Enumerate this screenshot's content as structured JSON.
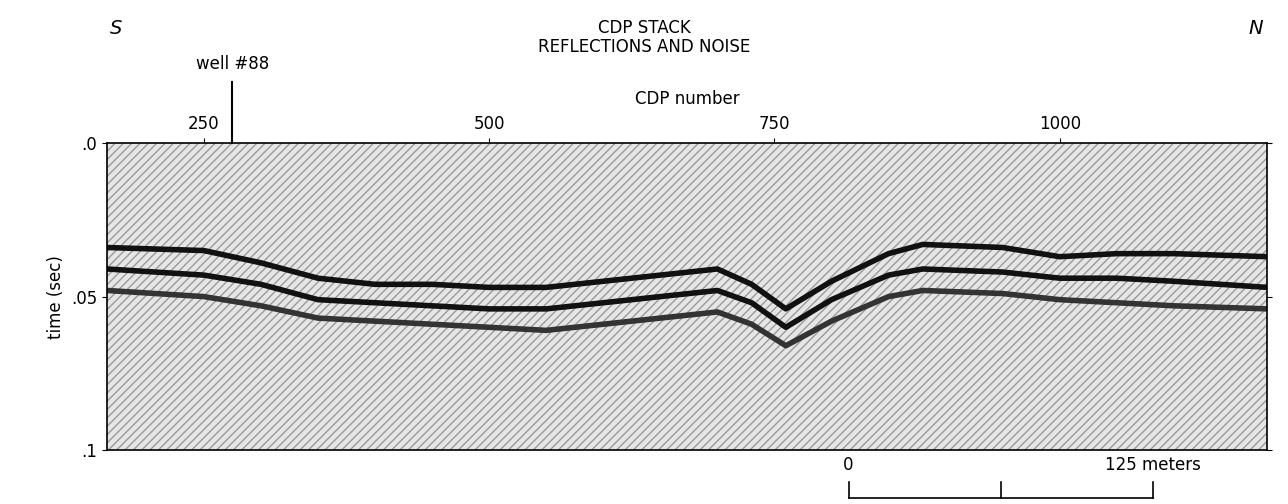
{
  "chart_data": {
    "type": "seismic_section",
    "title": "CDP STACK",
    "subtitle": "REFLECTIONS AND NOISE",
    "x_label": "CDP number",
    "y_label": "time (sec)",
    "direction_labels": [
      "S",
      "N"
    ],
    "xlim": [
      165,
      1182
    ],
    "xticks": [
      250,
      500,
      750,
      1000
    ],
    "ylim": [
      0.1,
      0
    ],
    "yticks": [
      {
        "value": 0,
        "label": ".0"
      },
      {
        "value": 0.05,
        "label": ".05"
      },
      {
        "value": 0.1,
        "label": ".1"
      }
    ],
    "x": [
      165,
      250,
      300,
      350,
      400,
      450,
      500,
      550,
      600,
      650,
      700,
      730,
      760,
      800,
      850,
      880,
      950,
      1000,
      1050,
      1100,
      1182
    ],
    "series": [
      {
        "color": "#111111",
        "values": [
          0.034,
          0.035,
          0.039,
          0.044,
          0.046,
          0.046,
          0.047,
          0.047,
          0.045,
          0.043,
          0.041,
          0.046,
          0.054,
          0.045,
          0.036,
          0.033,
          0.034,
          0.037,
          0.036,
          0.036,
          0.037
        ]
      },
      {
        "color": "#111111",
        "values": [
          0.041,
          0.043,
          0.046,
          0.051,
          0.052,
          0.053,
          0.054,
          0.054,
          0.052,
          0.05,
          0.048,
          0.052,
          0.06,
          0.051,
          0.043,
          0.041,
          0.042,
          0.044,
          0.044,
          0.045,
          0.047
        ]
      },
      {
        "color": "#333333",
        "values": [
          0.048,
          0.05,
          0.053,
          0.057,
          0.058,
          0.059,
          0.06,
          0.061,
          0.059,
          0.057,
          0.055,
          0.059,
          0.066,
          0.058,
          0.05,
          0.048,
          0.049,
          0.051,
          0.052,
          0.053,
          0.054
        ]
      }
    ],
    "annotations": [
      {
        "text": "well #88",
        "x": 275
      }
    ],
    "scale_bar": {
      "x": [
        815,
        1082
      ],
      "labels": [
        "0",
        "125 meters"
      ]
    },
    "grid": false
  }
}
